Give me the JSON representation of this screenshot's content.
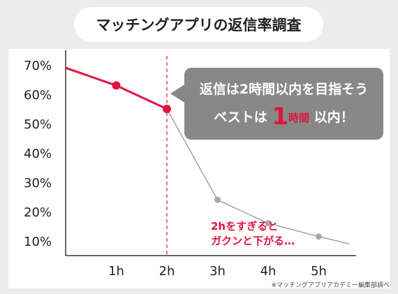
{
  "title": "マッチングアプリの返信率調査",
  "chart_data": {
    "type": "line",
    "title": "マッチングアプリの返信率調査",
    "xlabel": "",
    "ylabel": "",
    "x_ticks": [
      "1h",
      "2h",
      "3h",
      "4h",
      "5h"
    ],
    "y_ticks": [
      "70%",
      "60%",
      "50%",
      "40%",
      "30%",
      "20%",
      "10%"
    ],
    "xlim": [
      0,
      5.6
    ],
    "ylim": [
      5,
      75
    ],
    "reference_line_x": 2,
    "series": [
      {
        "color": "#e0143f",
        "points": [
          {
            "x": 0,
            "y": 69
          },
          {
            "x": 1,
            "y": 63,
            "marker": true
          },
          {
            "x": 2,
            "y": 55,
            "marker": true
          }
        ]
      },
      {
        "color": "#a8a8a8",
        "points": [
          {
            "x": 2,
            "y": 55
          },
          {
            "x": 3,
            "y": 24,
            "marker": true
          },
          {
            "x": 4,
            "y": 16,
            "marker": true
          },
          {
            "x": 5,
            "y": 11.5,
            "marker": true
          },
          {
            "x": 5.6,
            "y": 9
          }
        ]
      }
    ]
  },
  "callout": {
    "line1": "返信は2時間以内を目指そう",
    "line2_prefix": "ベストは",
    "line2_number": "1",
    "line2_unit": "時間",
    "line2_suffix": "以内！"
  },
  "annotation": {
    "line1": "2hをすぎると",
    "line2": "ガクンと下がる…"
  },
  "source": "※マッチングアプリアカデミー編集部調べ",
  "colors": {
    "accent": "#e0143f",
    "secondary_line": "#a8a8a8",
    "callout_bg": "#888888",
    "page_bg": "#ececec"
  }
}
